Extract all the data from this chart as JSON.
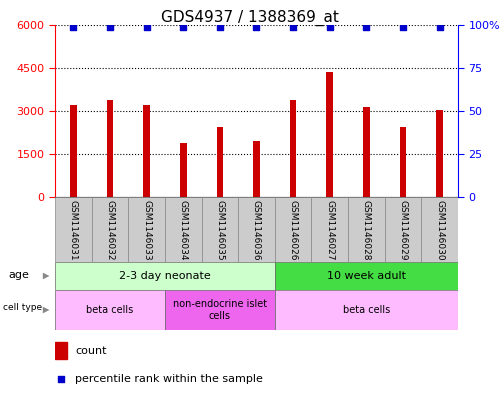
{
  "title": "GDS4937 / 1388369_at",
  "samples": [
    "GSM1146031",
    "GSM1146032",
    "GSM1146033",
    "GSM1146034",
    "GSM1146035",
    "GSM1146036",
    "GSM1146026",
    "GSM1146027",
    "GSM1146028",
    "GSM1146029",
    "GSM1146030"
  ],
  "counts": [
    3200,
    3380,
    3200,
    1900,
    2450,
    1950,
    3380,
    4350,
    3150,
    2450,
    3050
  ],
  "percentiles": [
    99,
    99,
    99,
    99,
    99,
    99,
    99,
    99,
    99,
    99,
    99
  ],
  "ylim_left": [
    0,
    6000
  ],
  "ylim_right": [
    0,
    100
  ],
  "yticks_left": [
    0,
    1500,
    3000,
    4500,
    6000
  ],
  "yticks_right": [
    0,
    25,
    50,
    75,
    100
  ],
  "bar_color": "#cc0000",
  "dot_color": "#0000cc",
  "bar_width": 0.18,
  "age_groups": [
    {
      "label": "2-3 day neonate",
      "start": 0,
      "end": 6,
      "color": "#ccffcc"
    },
    {
      "label": "10 week adult",
      "start": 6,
      "end": 11,
      "color": "#44dd44"
    }
  ],
  "cell_type_groups": [
    {
      "label": "beta cells",
      "start": 0,
      "end": 3,
      "color": "#ffbbff"
    },
    {
      "label": "non-endocrine islet\ncells",
      "start": 3,
      "end": 6,
      "color": "#ee66ee"
    },
    {
      "label": "beta cells",
      "start": 6,
      "end": 11,
      "color": "#ffbbff"
    }
  ],
  "title_fontsize": 11,
  "tick_fontsize": 8,
  "label_fontsize": 8,
  "sample_fontsize": 6.5,
  "annotation_fontsize": 8,
  "grid_color": "black",
  "grid_style": "dotted",
  "left_spine_color": "red",
  "right_spine_color": "blue"
}
